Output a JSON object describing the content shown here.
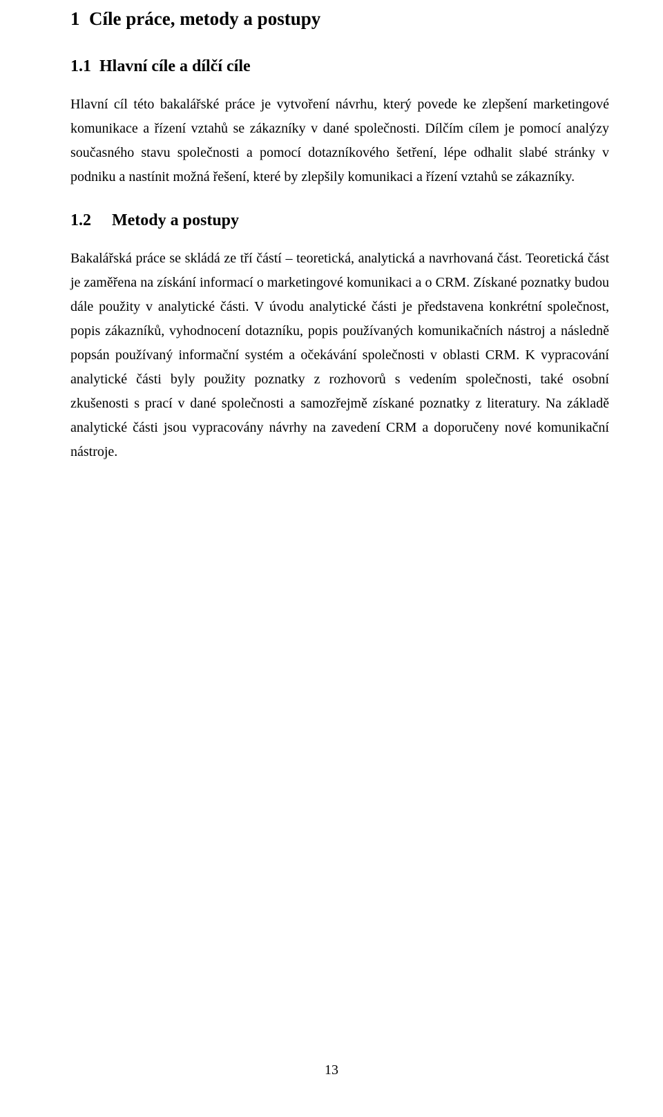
{
  "font_family": "Times New Roman",
  "text_color": "#000000",
  "background_color": "#ffffff",
  "heading1": {
    "number": "1",
    "title": "Cíle práce, metody a postupy",
    "fontsize_pt": 20,
    "font_weight": "bold"
  },
  "section1": {
    "number": "1.1",
    "title": "Hlavní cíle a dílčí cíle",
    "fontsize_pt": 18,
    "font_weight": "bold",
    "body": "Hlavní cíl této bakalářské práce je vytvoření návrhu, který povede ke zlepšení marketingové komunikace a řízení vztahů se zákazníky v dané společnosti. Dílčím cílem je pomocí analýzy současného stavu společnosti a pomocí dotazníkového šetření, lépe odhalit slabé stránky v podniku a nastínit možná řešení, které by zlepšily komunikaci a řízení vztahů se zákazníky.",
    "body_fontsize_pt": 15,
    "body_align": "justify",
    "line_height": 1.75
  },
  "section2": {
    "number": "1.2",
    "title": "Metody a postupy",
    "fontsize_pt": 18,
    "font_weight": "bold",
    "body": "Bakalářská práce se skládá ze tří částí – teoretická, analytická a navrhovaná část. Teoretická část je zaměřena na získání informací o marketingové komunikaci a o CRM. Získané poznatky budou dále použity v analytické části. V úvodu analytické části je představena konkrétní společnost, popis zákazníků, vyhodnocení dotazníku, popis používaných komunikačních nástroj a následně popsán používaný informační systém a očekávání společnosti v oblasti CRM. K vypracování analytické části byly použity poznatky z rozhovorů s vedením společnosti, také osobní zkušenosti s prací v dané společnosti a samozřejmě získané poznatky z literatury. Na základě analytické části jsou vypracovány návrhy na zavedení CRM a doporučeny nové komunikační nástroje.",
    "body_fontsize_pt": 15,
    "body_align": "justify",
    "line_height": 1.75
  },
  "page_number": "13"
}
